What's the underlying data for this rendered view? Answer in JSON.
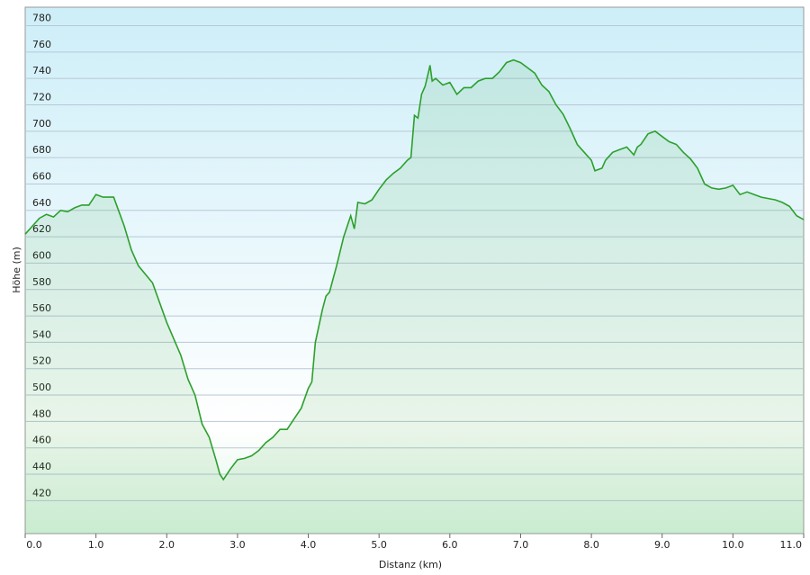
{
  "chart_data": {
    "type": "area",
    "x_label": "Distanz    (km)",
    "y_label": "Höhe (m)",
    "color": "#2ca02c",
    "grid": true,
    "xlim": [
      0,
      11.0
    ],
    "ylim": [
      395,
      794
    ],
    "xticks": [
      {
        "value": 0,
        "label": "0.0"
      },
      {
        "value": 1,
        "label": "1.0"
      },
      {
        "value": 2,
        "label": "2.0"
      },
      {
        "value": 3,
        "label": "3.0"
      },
      {
        "value": 4,
        "label": "4.0"
      },
      {
        "value": 5,
        "label": "5.0"
      },
      {
        "value": 6,
        "label": "6.0"
      },
      {
        "value": 7,
        "label": "7.0"
      },
      {
        "value": 8,
        "label": "8.0"
      },
      {
        "value": 9,
        "label": "9.0"
      },
      {
        "value": 10,
        "label": "10.0"
      },
      {
        "value": 11,
        "label": "11.0"
      }
    ],
    "yticks": [
      420,
      440,
      460,
      480,
      500,
      520,
      540,
      560,
      580,
      600,
      620,
      640,
      660,
      680,
      700,
      720,
      740,
      760,
      780
    ],
    "x": [
      0.0,
      0.1,
      0.2,
      0.3,
      0.4,
      0.5,
      0.6,
      0.7,
      0.8,
      0.9,
      1.0,
      1.1,
      1.2,
      1.25,
      1.4,
      1.5,
      1.6,
      1.8,
      2.0,
      2.2,
      2.3,
      2.4,
      2.5,
      2.6,
      2.7,
      2.75,
      2.8,
      2.9,
      3.0,
      3.1,
      3.2,
      3.3,
      3.4,
      3.5,
      3.6,
      3.7,
      3.8,
      3.9,
      4.0,
      4.05,
      4.1,
      4.2,
      4.25,
      4.3,
      4.4,
      4.5,
      4.6,
      4.65,
      4.7,
      4.8,
      4.9,
      5.0,
      5.1,
      5.2,
      5.3,
      5.4,
      5.45,
      5.5,
      5.55,
      5.6,
      5.65,
      5.7,
      5.72,
      5.75,
      5.8,
      5.9,
      6.0,
      6.1,
      6.2,
      6.3,
      6.4,
      6.5,
      6.6,
      6.7,
      6.8,
      6.9,
      7.0,
      7.1,
      7.2,
      7.3,
      7.4,
      7.5,
      7.6,
      7.7,
      7.8,
      7.9,
      8.0,
      8.05,
      8.15,
      8.2,
      8.3,
      8.4,
      8.5,
      8.6,
      8.65,
      8.7,
      8.8,
      8.9,
      9.0,
      9.1,
      9.2,
      9.3,
      9.4,
      9.5,
      9.6,
      9.7,
      9.8,
      9.9,
      10.0,
      10.1,
      10.2,
      10.3,
      10.4,
      10.5,
      10.6,
      10.7,
      10.8,
      10.9,
      11.0
    ],
    "values": [
      622,
      628,
      634,
      637,
      635,
      640,
      639,
      642,
      644,
      644,
      652,
      650,
      650,
      650,
      628,
      610,
      598,
      585,
      555,
      530,
      512,
      500,
      478,
      468,
      450,
      440,
      436,
      444,
      451,
      452,
      454,
      458,
      464,
      468,
      474,
      474,
      482,
      490,
      505,
      510,
      540,
      565,
      575,
      578,
      598,
      620,
      636,
      626,
      646,
      645,
      648,
      656,
      663,
      668,
      672,
      678,
      680,
      712,
      710,
      728,
      734,
      745,
      750,
      738,
      740,
      735,
      737,
      728,
      733,
      733,
      738,
      740,
      740,
      745,
      752,
      754,
      752,
      748,
      744,
      735,
      730,
      720,
      713,
      702,
      690,
      684,
      678,
      670,
      672,
      678,
      684,
      686,
      688,
      682,
      688,
      690,
      698,
      700,
      696,
      692,
      690,
      684,
      679,
      672,
      660,
      657,
      656,
      657,
      659,
      652,
      654,
      652,
      650,
      649,
      648,
      646,
      643,
      636,
      633
    ]
  }
}
